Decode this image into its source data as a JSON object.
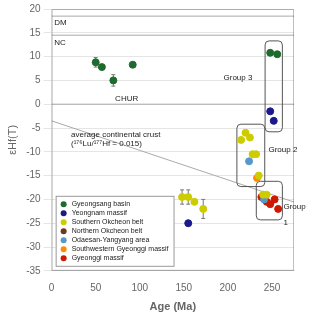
{
  "chart_data": {
    "type": "scatter",
    "xlabel": "Age (Ma)",
    "ylabel": "εHf(T)",
    "xlim": [
      0,
      275
    ],
    "ylim": [
      -35,
      20
    ],
    "xticks": [
      0,
      50,
      100,
      150,
      200,
      250
    ],
    "yticks": [
      20,
      15,
      10,
      5,
      0,
      -5,
      -10,
      -15,
      -20,
      -25,
      -30,
      -35
    ],
    "grid": "y",
    "legend": "lower left",
    "series": [
      {
        "name": "Gyeongsang basin",
        "color": "#1e6b2e",
        "x": [
          50,
          57,
          70,
          92,
          248,
          256
        ],
        "values": [
          8.8,
          7.8,
          5.0,
          8.3,
          10.8,
          10.5
        ],
        "xerr": [
          0,
          0,
          0,
          0,
          0,
          0
        ],
        "yerr": [
          1.0,
          0.5,
          1.2,
          0.5,
          0,
          0
        ]
      },
      {
        "name": "Yeongnam massif",
        "color": "#1a1a8c",
        "x": [
          155,
          248,
          252
        ],
        "values": [
          -25,
          -1.5,
          -3.5
        ],
        "xerr": [
          0,
          0,
          0
        ],
        "yerr": [
          0,
          0,
          0
        ]
      },
      {
        "name": "Southern Okcheon belt",
        "color": "#cccc00",
        "x": [
          148,
          155,
          162,
          172,
          215,
          220,
          225,
          228,
          232,
          235,
          240,
          244
        ],
        "values": [
          -19.5,
          -19.5,
          -20.5,
          -22,
          -7.5,
          -6.0,
          -7.0,
          -10.5,
          -10.5,
          -15.0,
          -19,
          -19
        ],
        "xerr": [
          3,
          2,
          0,
          3,
          0,
          0,
          0,
          0,
          0,
          0,
          0,
          0
        ],
        "yerr": [
          1.5,
          1.5,
          0,
          2,
          0,
          0,
          0,
          0,
          0,
          0,
          0,
          0
        ]
      },
      {
        "name": "Northern Okcheon belt",
        "color": "#6b3a1e",
        "x": [],
        "values": [],
        "xerr": [],
        "yerr": []
      },
      {
        "name": "Odaesan-Yangyang area",
        "color": "#5599cc",
        "x": [
          224,
          241
        ],
        "values": [
          -12,
          -20
        ],
        "xerr": [
          0,
          0
        ],
        "yerr": [
          0,
          0
        ]
      },
      {
        "name": "Southwestern Gyeonggi massif",
        "color": "#ff8c00",
        "x": [
          233
        ],
        "values": [
          -15.5
        ],
        "xerr": [
          0
        ],
        "yerr": [
          0
        ]
      },
      {
        "name": "Gyeonggi massif",
        "color": "#cc1a00",
        "x": [
          238,
          244,
          248,
          253,
          257
        ],
        "values": [
          -19.5,
          -20.5,
          -21,
          -20,
          -22
        ],
        "xerr": [
          0,
          0,
          0,
          0,
          0
        ],
        "yerr": [
          0,
          0,
          0,
          0,
          0
        ]
      }
    ],
    "ref_lines": [
      {
        "x": [
          0,
          275
        ],
        "y": [
          18.5,
          18.5
        ]
      },
      {
        "x": [
          0,
          275
        ],
        "y": [
          14.5,
          14.5
        ]
      },
      {
        "x": [
          0,
          275
        ],
        "y": [
          0.0,
          0.0
        ]
      },
      {
        "x": [
          0,
          275
        ],
        "y": [
          -3.5,
          -20.55
        ]
      }
    ],
    "boxes": [
      {
        "xlim": [
          242.2,
          261.8
        ],
        "ylim": [
          -5.8,
          13.3
        ]
      },
      {
        "xlim": [
          210.2,
          241.8
        ],
        "ylim": [
          -17.3,
          -4.2
        ]
      },
      {
        "xlim": [
          232.2,
          261.8
        ],
        "ylim": [
          -24.3,
          -16.2
        ]
      }
    ],
    "annotations": [
      {
        "text": "DM",
        "x": 3,
        "y": 17.0
      },
      {
        "text": "NC",
        "x": 3,
        "y": 13.0
      },
      {
        "text": "CHUR",
        "x": 72,
        "y": 1.2
      },
      {
        "text": "average continental crust",
        "x": 22,
        "y": -6.5
      },
      {
        "text": "(¹⁷⁶Lu/¹⁷⁷Hf = 0.015)",
        "x": 22,
        "y": -8.3
      },
      {
        "text": "Group 3",
        "x": 195,
        "y": 5.5
      },
      {
        "text": "Group 2",
        "x": 246,
        "y": -9.5
      },
      {
        "text": "Group",
        "x": 263,
        "y": -21.5
      },
      {
        "text": "1",
        "x": 263,
        "y": -25
      }
    ]
  }
}
